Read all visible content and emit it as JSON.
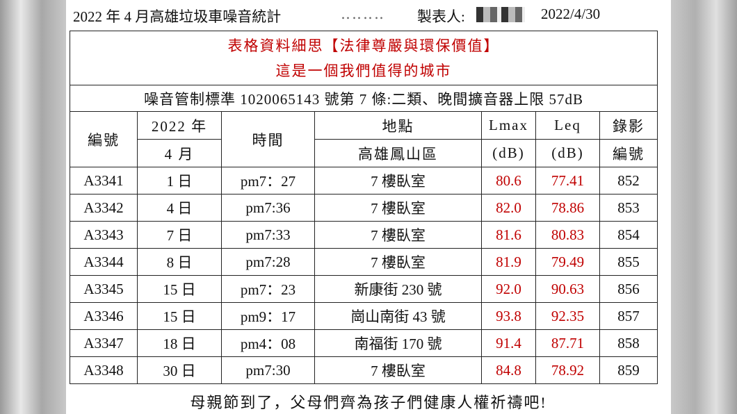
{
  "header": {
    "title": "2022 年 4 月高雄垃圾車噪音統計",
    "maker": "製表人:",
    "date": "2022/4/30"
  },
  "banner": [
    "表格資料細思【法律尊嚴與環保價值】",
    "這是一個我們值得的城市"
  ],
  "standard": "噪音管制標準 1020065143 號第 7 條:二類、晚間擴音器上限 57dB",
  "table": {
    "header_rows": [
      [
        "編號",
        "2022 年",
        "時間",
        "地點",
        "Lmax",
        "Leq",
        "錄影"
      ],
      [
        "4 月",
        "高雄鳳山區",
        "(dB)",
        "(dB)",
        "編號"
      ]
    ],
    "rows": [
      [
        "A3341",
        "1 日",
        "pm7：27",
        "7 樓臥室",
        "80.6",
        "77.41",
        "852"
      ],
      [
        "A3342",
        "4 日",
        "pm7:36",
        "7 樓臥室",
        "82.0",
        "78.86",
        "853"
      ],
      [
        "A3343",
        "7 日",
        "pm7:33",
        "7 樓臥室",
        "81.6",
        "80.83",
        "854"
      ],
      [
        "A3344",
        "8 日",
        "pm7:28",
        "7 樓臥室",
        "81.9",
        "79.49",
        "855"
      ],
      [
        "A3345",
        "15 日",
        "pm7：23",
        "新康街 230 號",
        "92.0",
        "90.63",
        "856"
      ],
      [
        "A3346",
        "15 日",
        "pm9：17",
        "崗山南街 43 號",
        "93.8",
        "92.35",
        "857"
      ],
      [
        "A3347",
        "18 日",
        "pm4：08",
        "南福街 170 號",
        "91.4",
        "87.71",
        "858"
      ],
      [
        "A3348",
        "30 日",
        "pm7:30",
        "7 樓臥室",
        "84.8",
        "78.92",
        "859"
      ]
    ]
  },
  "footer": "母親節到了，父母們齊為孩子們健康人權祈禱吧!"
}
